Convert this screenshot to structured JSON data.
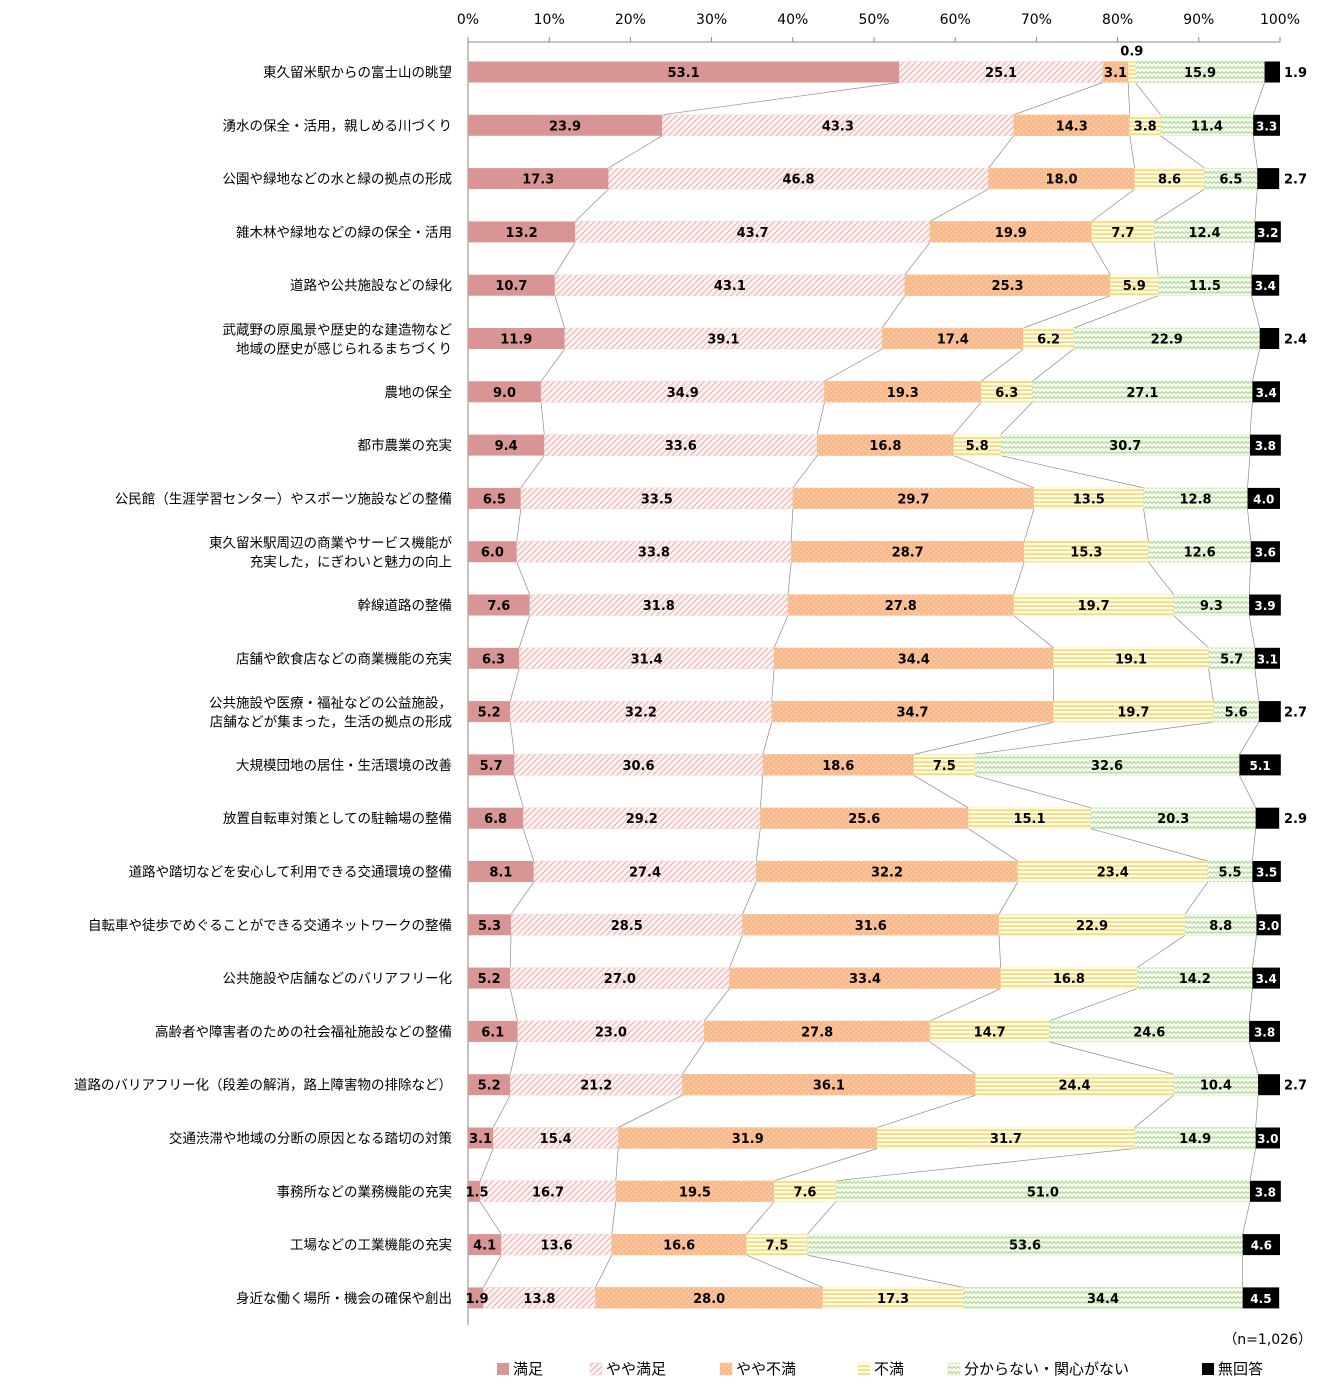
{
  "chart_data": {
    "type": "bar",
    "orientation": "horizontal",
    "stacked": true,
    "percent_stacked": true,
    "xlim": [
      0,
      100
    ],
    "x_ticks": [
      "0%",
      "10%",
      "20%",
      "30%",
      "40%",
      "50%",
      "60%",
      "70%",
      "80%",
      "90%",
      "100%"
    ],
    "grid": false,
    "legend_position": "bottom",
    "note": "（n=1,026）",
    "categories": [
      "東久留米駅からの富士山の眺望",
      "湧水の保全・活用，親しめる川づくり",
      "公園や緑地などの水と緑の拠点の形成",
      "雑木林や緑地などの緑の保全・活用",
      "道路や公共施設などの緑化",
      "武蔵野の原風景や歴史的な建造物など\n地域の歴史が感じられるまちづくり",
      "農地の保全",
      "都市農業の充実",
      "公民館（生涯学習センター）やスポーツ施設などの整備",
      "東久留米駅周辺の商業やサービス機能が\n充実した，にぎわいと魅力の向上",
      "幹線道路の整備",
      "店舗や飲食店などの商業機能の充実",
      "公共施設や医療・福祉などの公益施設，\n店舗などが集まった，生活の拠点の形成",
      "大規模団地の居住・生活環境の改善",
      "放置自転車対策としての駐輪場の整備",
      "道路や踏切などを安心して利用できる交通環境の整備",
      "自転車や徒歩でめぐることができる交通ネットワークの整備",
      "公共施設や店舗などのバリアフリー化",
      "高齢者や障害者のための社会福祉施設などの整備",
      "道路のバリアフリー化（段差の解消，路上障害物の排除など）",
      "交通渋滞や地域の分断の原因となる踏切の対策",
      "事務所などの業務機能の充実",
      "工場などの工業機能の充実",
      "身近な働く場所・機会の確保や創出"
    ],
    "series": [
      {
        "name": "満足",
        "color": "#d99594",
        "pattern": "solid",
        "values": [
          53.1,
          23.9,
          17.3,
          13.2,
          10.7,
          11.9,
          9.0,
          9.4,
          6.5,
          6.0,
          7.6,
          6.3,
          5.2,
          5.7,
          6.8,
          8.1,
          5.3,
          5.2,
          6.1,
          5.2,
          3.1,
          1.5,
          4.1,
          1.9
        ]
      },
      {
        "name": "やや満足",
        "color": "#f3c4c4",
        "pattern": "diagonal",
        "values": [
          25.1,
          43.3,
          46.8,
          43.7,
          43.1,
          39.1,
          34.9,
          33.6,
          33.5,
          33.8,
          31.8,
          31.4,
          32.2,
          30.6,
          29.2,
          27.4,
          28.5,
          27.0,
          23.0,
          21.2,
          15.4,
          16.7,
          13.6,
          13.8
        ]
      },
      {
        "name": "やや不満",
        "color": "#fac090",
        "pattern": "dots",
        "values": [
          3.1,
          14.3,
          18.0,
          19.9,
          25.3,
          17.4,
          19.3,
          16.8,
          29.7,
          28.7,
          27.8,
          34.4,
          34.7,
          18.6,
          25.6,
          32.2,
          31.6,
          33.4,
          27.8,
          36.1,
          31.9,
          19.5,
          16.6,
          28.0
        ]
      },
      {
        "name": "不満",
        "color": "#ffe699",
        "pattern": "horizontal",
        "values": [
          0.9,
          3.8,
          8.6,
          7.7,
          5.9,
          6.2,
          6.3,
          5.8,
          13.5,
          15.3,
          19.7,
          19.1,
          19.7,
          7.5,
          15.1,
          23.4,
          22.9,
          16.8,
          14.7,
          24.4,
          31.7,
          7.6,
          7.5,
          17.3
        ]
      },
      {
        "name": "分からない・関心がない",
        "color": "#c4e0a8",
        "pattern": "zigzag",
        "values": [
          15.9,
          11.4,
          6.5,
          12.4,
          11.5,
          22.9,
          27.1,
          30.7,
          12.8,
          12.6,
          9.3,
          5.7,
          5.6,
          32.6,
          20.3,
          5.5,
          8.8,
          14.2,
          24.6,
          10.4,
          14.9,
          51.0,
          53.6,
          34.4
        ]
      },
      {
        "name": "無回答",
        "color": "#000000",
        "pattern": "solid",
        "values": [
          1.9,
          3.3,
          2.7,
          3.2,
          3.4,
          2.4,
          3.4,
          3.8,
          4.0,
          3.6,
          3.9,
          3.1,
          2.7,
          5.1,
          2.9,
          3.5,
          3.0,
          3.4,
          3.8,
          2.7,
          3.0,
          3.8,
          4.6,
          4.5
        ]
      }
    ]
  }
}
